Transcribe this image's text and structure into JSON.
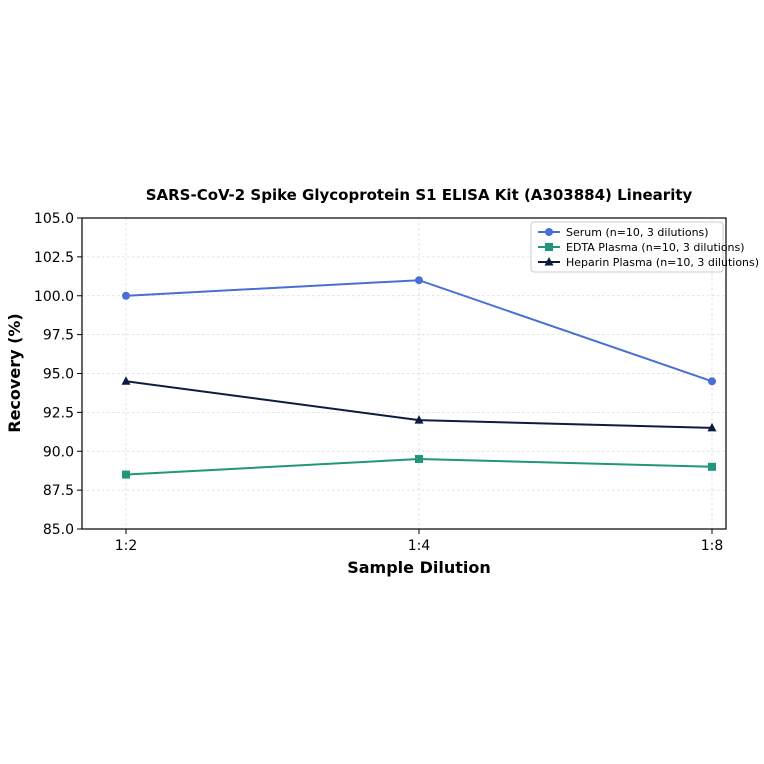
{
  "chart_data": {
    "type": "line",
    "title": "SARS-CoV-2 Spike Glycoprotein S1 ELISA Kit (A303884) Linearity",
    "xlabel": "Sample Dilution",
    "ylabel": "Recovery (%)",
    "categories": [
      "1:2",
      "1:4",
      "1:8"
    ],
    "ylim": [
      85.0,
      105.0
    ],
    "yticks": [
      "85.0",
      "87.5",
      "90.0",
      "92.5",
      "95.0",
      "97.5",
      "100.0",
      "102.5",
      "105.0"
    ],
    "grid": true,
    "legend_position": "top-right",
    "series": [
      {
        "name": "Serum (n=10, 3 dilutions)",
        "values": [
          100.0,
          101.0,
          94.5
        ],
        "color": "#4a6fd4",
        "marker": "circle"
      },
      {
        "name": "EDTA Plasma (n=10, 3 dilutions)",
        "values": [
          88.5,
          89.5,
          89.0
        ],
        "color": "#21967a",
        "marker": "square"
      },
      {
        "name": "Heparin Plasma (n=10, 3 dilutions)",
        "values": [
          94.5,
          92.0,
          91.5
        ],
        "color": "#0d1b3e",
        "marker": "triangle"
      }
    ]
  }
}
